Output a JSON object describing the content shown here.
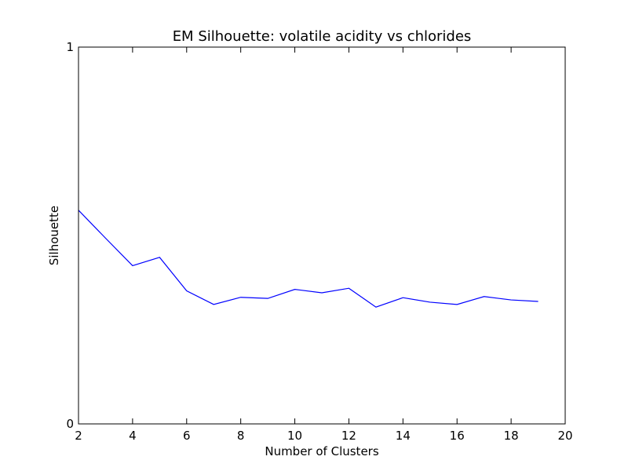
{
  "chart_data": {
    "type": "line",
    "title": "EM Silhouette: volatile acidity vs chlorides",
    "xlabel": "Number of Clusters",
    "ylabel": "Silhouette",
    "xlim": [
      2,
      20
    ],
    "ylim": [
      0,
      1
    ],
    "xticks": [
      2,
      4,
      6,
      8,
      10,
      12,
      14,
      16,
      18,
      20
    ],
    "yticks": [
      0,
      1
    ],
    "grid": false,
    "series": [
      {
        "color": "#0000ff",
        "x": [
          2,
          3,
          4,
          5,
          6,
          7,
          8,
          9,
          10,
          11,
          12,
          13,
          14,
          15,
          16,
          17,
          18,
          19
        ],
        "y": [
          0.567,
          0.493,
          0.42,
          0.442,
          0.353,
          0.317,
          0.336,
          0.333,
          0.357,
          0.348,
          0.36,
          0.31,
          0.335,
          0.323,
          0.317,
          0.338,
          0.329,
          0.325
        ]
      }
    ]
  }
}
